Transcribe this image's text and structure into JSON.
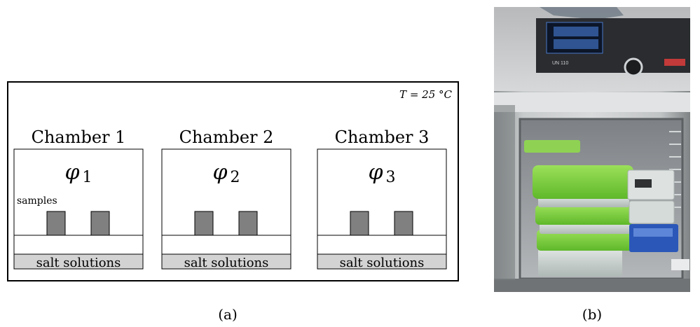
{
  "panel_a": {
    "temperature_label": "T = 25 °C",
    "caption": "(a)",
    "chambers": [
      {
        "title": "Chamber 1",
        "phi_symbol": "φ",
        "phi_subscript": "1"
      },
      {
        "title": "Chamber 2",
        "phi_symbol": "φ",
        "phi_subscript": "2"
      },
      {
        "title": "Chamber 3",
        "phi_symbol": "φ",
        "phi_subscript": "3"
      }
    ],
    "samples_label": "samples",
    "salt_label": "salt solutions"
  },
  "panel_b": {
    "caption": "(b)",
    "display_model": "UN 110"
  },
  "colors": {
    "sample_fill": "#808080",
    "salt_fill": "#d3d3d3",
    "stroke": "#000000",
    "lid_green": "#7ed23a",
    "chamber_interior": "#9a9ea3",
    "steel_frame": "#b9bcbd",
    "display_blue": "#4a79c8",
    "blue_box": "#2b57b8"
  }
}
